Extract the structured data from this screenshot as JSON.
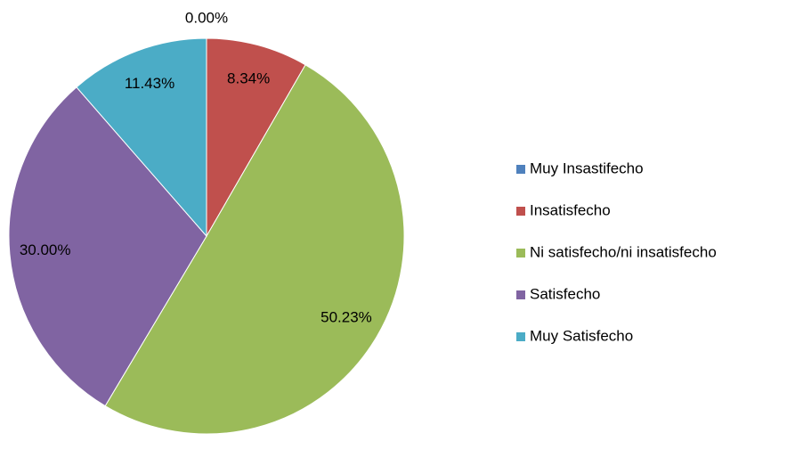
{
  "chart_data": {
    "type": "pie",
    "categories": [
      "Muy Insastifecho",
      "Insatisfecho",
      "Ni satisfecho/ni insatisfecho",
      "Satisfecho",
      "Muy Satisfecho"
    ],
    "values": [
      0,
      8.34,
      50.23,
      30,
      11.43
    ],
    "value_labels": [
      "0.00%",
      "8.34%",
      "50.23%",
      "30.00%",
      "11.43%"
    ],
    "colors": [
      "#4f81bd",
      "#c0504d",
      "#9bbb59",
      "#8064a2",
      "#4bacc6"
    ],
    "legend": "right"
  }
}
